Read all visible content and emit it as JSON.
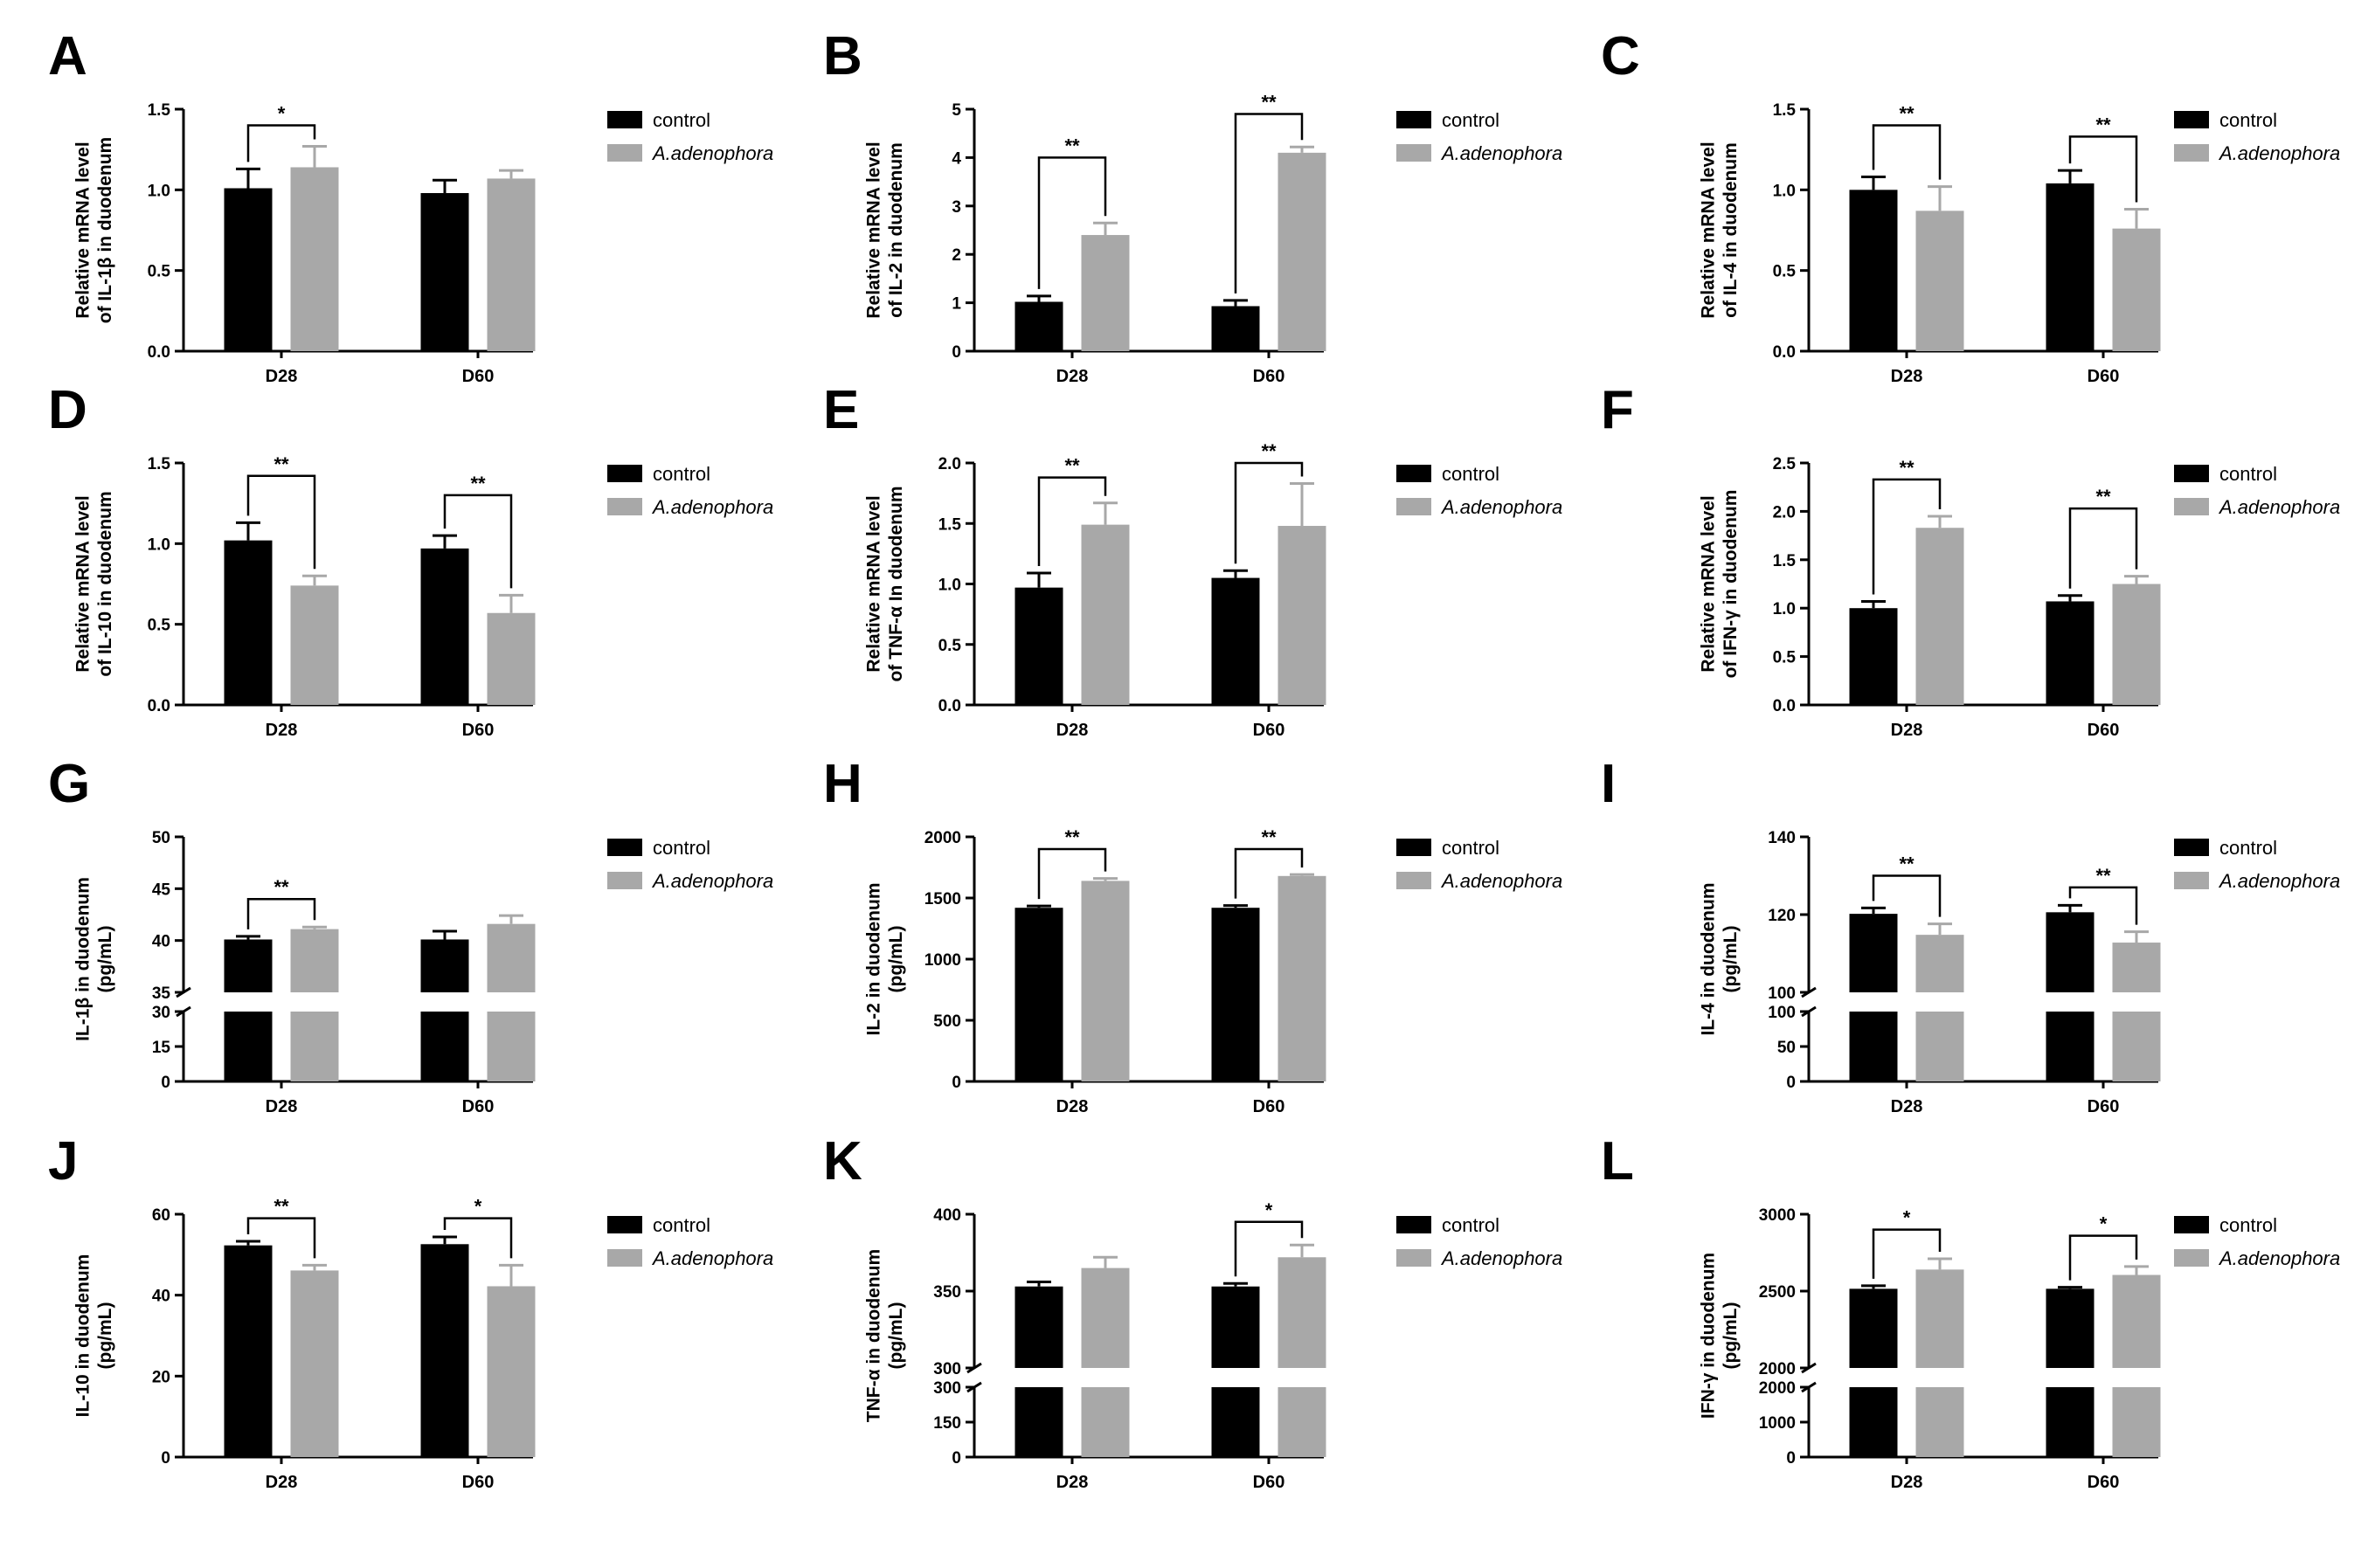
{
  "legend": {
    "control": "control",
    "treatment": "A.adenophora"
  },
  "colors": {
    "control": "#000000",
    "treatment": "#a8a8a8",
    "axis": "#000000"
  },
  "chart_data": [
    {
      "panel": "A",
      "type": "bar",
      "ylabel": [
        "Relative mRNA level",
        "of IL-1β in duodenum"
      ],
      "categories": [
        "D28",
        "D60"
      ],
      "yticks": [
        "0.0",
        "0.5",
        "1.0",
        "1.5"
      ],
      "ylim": [
        0,
        1.5
      ],
      "series": [
        {
          "name": "control",
          "values": [
            1.01,
            0.98
          ],
          "errors": [
            0.12,
            0.08
          ]
        },
        {
          "name": "A.adenophora",
          "values": [
            1.14,
            1.07
          ],
          "errors": [
            0.13,
            0.05
          ]
        }
      ],
      "significance": [
        {
          "group": 0,
          "label": "*",
          "level": 1.4
        }
      ]
    },
    {
      "panel": "B",
      "type": "bar",
      "ylabel": [
        "Relative mRNA level",
        "of IL-2 in duodenum"
      ],
      "categories": [
        "D28",
        "D60"
      ],
      "yticks": [
        "0",
        "1",
        "2",
        "3",
        "4",
        "5"
      ],
      "ylim": [
        0,
        5
      ],
      "series": [
        {
          "name": "control",
          "values": [
            1.02,
            0.93
          ],
          "errors": [
            0.12,
            0.12
          ]
        },
        {
          "name": "A.adenophora",
          "values": [
            2.4,
            4.1
          ],
          "errors": [
            0.25,
            0.12
          ]
        }
      ],
      "significance": [
        {
          "group": 0,
          "label": "**",
          "level": 4.0
        },
        {
          "group": 1,
          "label": "**",
          "level": 4.9
        }
      ]
    },
    {
      "panel": "C",
      "type": "bar",
      "ylabel": [
        "Relative mRNA level",
        "of IL-4 in duodenum"
      ],
      "categories": [
        "D28",
        "D60"
      ],
      "yticks": [
        "0.0",
        "0.5",
        "1.0",
        "1.5"
      ],
      "ylim": [
        0,
        1.5
      ],
      "series": [
        {
          "name": "control",
          "values": [
            1.0,
            1.04
          ],
          "errors": [
            0.08,
            0.08
          ]
        },
        {
          "name": "A.adenophora",
          "values": [
            0.87,
            0.76
          ],
          "errors": [
            0.15,
            0.12
          ]
        }
      ],
      "significance": [
        {
          "group": 0,
          "label": "**",
          "level": 1.4
        },
        {
          "group": 1,
          "label": "**",
          "level": 1.33
        }
      ]
    },
    {
      "panel": "D",
      "type": "bar",
      "ylabel": [
        "Relative mRNA level",
        "of IL-10 in duodenum"
      ],
      "categories": [
        "D28",
        "D60"
      ],
      "yticks": [
        "0.0",
        "0.5",
        "1.0",
        "1.5"
      ],
      "ylim": [
        0,
        1.5
      ],
      "series": [
        {
          "name": "control",
          "values": [
            1.02,
            0.97
          ],
          "errors": [
            0.11,
            0.08
          ]
        },
        {
          "name": "A.adenophora",
          "values": [
            0.74,
            0.57
          ],
          "errors": [
            0.06,
            0.11
          ]
        }
      ],
      "significance": [
        {
          "group": 0,
          "label": "**",
          "level": 1.42
        },
        {
          "group": 1,
          "label": "**",
          "level": 1.3
        }
      ]
    },
    {
      "panel": "E",
      "type": "bar",
      "ylabel": [
        "Relative mRNA level",
        "of TNF-α In duodenum"
      ],
      "categories": [
        "D28",
        "D60"
      ],
      "yticks": [
        "0.0",
        "0.5",
        "1.0",
        "1.5",
        "2.0"
      ],
      "ylim": [
        0,
        2.0
      ],
      "series": [
        {
          "name": "control",
          "values": [
            0.97,
            1.05
          ],
          "errors": [
            0.12,
            0.06
          ]
        },
        {
          "name": "A.adenophora",
          "values": [
            1.49,
            1.48
          ],
          "errors": [
            0.18,
            0.35
          ]
        }
      ],
      "significance": [
        {
          "group": 0,
          "label": "**",
          "level": 1.88
        },
        {
          "group": 1,
          "label": "**",
          "level": 2.0
        }
      ]
    },
    {
      "panel": "F",
      "type": "bar",
      "ylabel": [
        "Relative mRNA level",
        "of IFN-γ in duodenum"
      ],
      "categories": [
        "D28",
        "D60"
      ],
      "yticks": [
        "0.0",
        "0.5",
        "1.0",
        "1.5",
        "2.0",
        "2.5"
      ],
      "ylim": [
        0,
        2.5
      ],
      "series": [
        {
          "name": "control",
          "values": [
            1.0,
            1.07
          ],
          "errors": [
            0.07,
            0.06
          ]
        },
        {
          "name": "A.adenophora",
          "values": [
            1.83,
            1.25
          ],
          "errors": [
            0.12,
            0.08
          ]
        }
      ],
      "significance": [
        {
          "group": 0,
          "label": "**",
          "level": 2.33
        },
        {
          "group": 1,
          "label": "**",
          "level": 2.03
        }
      ]
    },
    {
      "panel": "G",
      "type": "bar",
      "ylabel": [
        "IL-1β in duodenum",
        "(pg/mL)"
      ],
      "categories": [
        "D28",
        "D60"
      ],
      "axis_break": {
        "lower": [
          0,
          30
        ],
        "upper": [
          35,
          50
        ],
        "lower_ticks": [
          "0",
          "15",
          "30"
        ],
        "upper_ticks": [
          "35",
          "40",
          "45",
          "50"
        ]
      },
      "series": [
        {
          "name": "control",
          "values": [
            40.1,
            40.1
          ],
          "errors": [
            0.3,
            0.8
          ]
        },
        {
          "name": "A.adenophora",
          "values": [
            41.1,
            41.6
          ],
          "errors": [
            0.2,
            0.8
          ]
        }
      ],
      "significance": [
        {
          "group": 0,
          "label": "**",
          "level": 44.0
        }
      ]
    },
    {
      "panel": "H",
      "type": "bar",
      "ylabel": [
        "IL-2 in duodenum",
        "(pg/mL)"
      ],
      "categories": [
        "D28",
        "D60"
      ],
      "yticks": [
        "0",
        "500",
        "1000",
        "1500",
        "2000"
      ],
      "ylim": [
        0,
        2000
      ],
      "series": [
        {
          "name": "control",
          "values": [
            1420,
            1420
          ],
          "errors": [
            15,
            18
          ]
        },
        {
          "name": "A.adenophora",
          "values": [
            1640,
            1680
          ],
          "errors": [
            20,
            12
          ]
        }
      ],
      "significance": [
        {
          "group": 0,
          "label": "**",
          "level": 1900
        },
        {
          "group": 1,
          "label": "**",
          "level": 1900
        }
      ]
    },
    {
      "panel": "I",
      "type": "bar",
      "ylabel": [
        "IL-4 in duodenum",
        "(pg/mL)"
      ],
      "categories": [
        "D28",
        "D60"
      ],
      "axis_break": {
        "lower": [
          0,
          100
        ],
        "upper": [
          100,
          140
        ],
        "lower_ticks": [
          "0",
          "50",
          "100"
        ],
        "upper_ticks": [
          "100",
          "120",
          "140"
        ]
      },
      "series": [
        {
          "name": "control",
          "values": [
            120.2,
            120.6
          ],
          "errors": [
            1.5,
            1.8
          ]
        },
        {
          "name": "A.adenophora",
          "values": [
            114.8,
            112.8
          ],
          "errors": [
            2.8,
            2.8
          ]
        }
      ],
      "significance": [
        {
          "group": 0,
          "label": "**",
          "level": 130
        },
        {
          "group": 1,
          "label": "**",
          "level": 127
        }
      ]
    },
    {
      "panel": "J",
      "type": "bar",
      "ylabel": [
        "IL-10 in duodenum",
        "(pg/mL)"
      ],
      "categories": [
        "D28",
        "D60"
      ],
      "yticks": [
        "0",
        "20",
        "40",
        "60"
      ],
      "ylim": [
        0,
        60
      ],
      "series": [
        {
          "name": "control",
          "values": [
            52.3,
            52.6
          ],
          "errors": [
            1.0,
            1.8
          ]
        },
        {
          "name": "A.adenophora",
          "values": [
            46.1,
            42.2
          ],
          "errors": [
            1.3,
            5.2
          ]
        }
      ],
      "significance": [
        {
          "group": 0,
          "label": "**",
          "level": 59
        },
        {
          "group": 1,
          "label": "*",
          "level": 59
        }
      ]
    },
    {
      "panel": "K",
      "type": "bar",
      "ylabel": [
        "TNF-α in duodenum",
        "(pg/mL)"
      ],
      "categories": [
        "D28",
        "D60"
      ],
      "axis_break": {
        "lower": [
          0,
          300
        ],
        "upper": [
          300,
          400
        ],
        "lower_ticks": [
          "0",
          "150",
          "300"
        ],
        "upper_ticks": [
          "300",
          "350",
          "400"
        ]
      },
      "series": [
        {
          "name": "control",
          "values": [
            353,
            353
          ],
          "errors": [
            3,
            2
          ]
        },
        {
          "name": "A.adenophora",
          "values": [
            365,
            372
          ],
          "errors": [
            7,
            8
          ]
        }
      ],
      "significance": [
        {
          "group": 1,
          "label": "*",
          "level": 395
        }
      ]
    },
    {
      "panel": "L",
      "type": "bar",
      "ylabel": [
        "IFN-γ in duodenum",
        "(pg/mL)"
      ],
      "categories": [
        "D28",
        "D60"
      ],
      "axis_break": {
        "lower": [
          0,
          2000
        ],
        "upper": [
          2000,
          3000
        ],
        "lower_ticks": [
          "0",
          "1000",
          "2000"
        ],
        "upper_ticks": [
          "2000",
          "2500",
          "3000"
        ]
      },
      "series": [
        {
          "name": "control",
          "values": [
            2515,
            2515
          ],
          "errors": [
            20,
            10
          ]
        },
        {
          "name": "A.adenophora",
          "values": [
            2640,
            2605
          ],
          "errors": [
            70,
            55
          ]
        }
      ],
      "significance": [
        {
          "group": 0,
          "label": "*",
          "level": 2900
        },
        {
          "group": 1,
          "label": "*",
          "level": 2860
        }
      ]
    }
  ]
}
